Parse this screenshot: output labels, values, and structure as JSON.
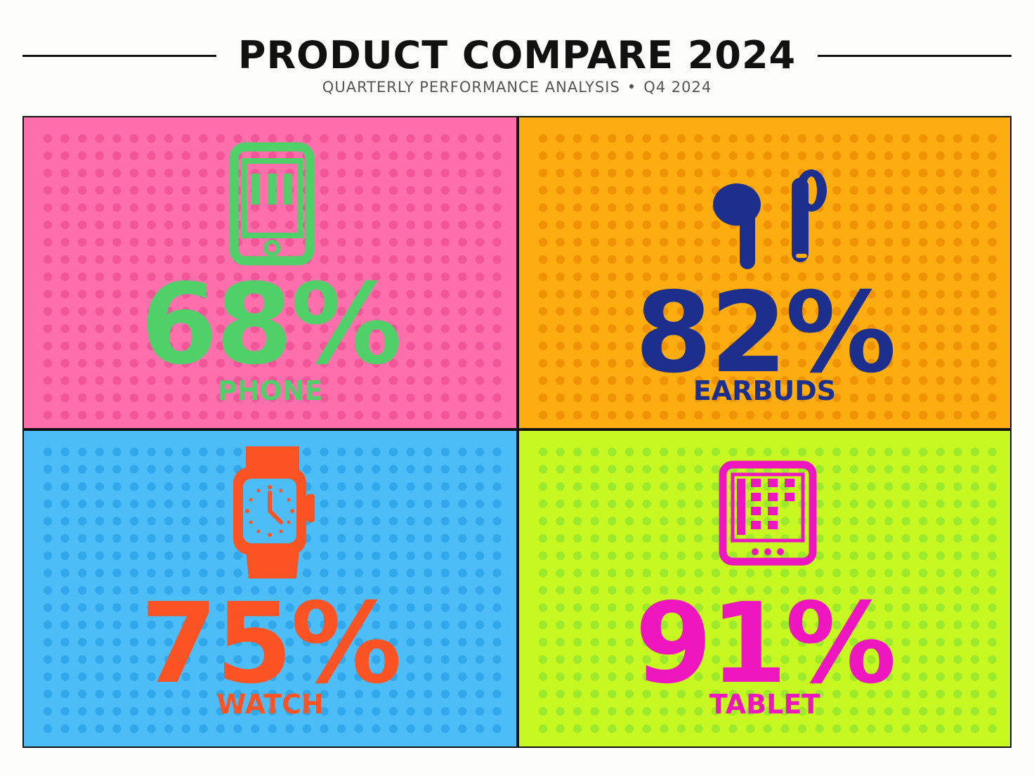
{
  "header": {
    "title": "PRODUCT COMPARE 2024",
    "subtitle_left": "QUARTERLY PERFORMANCE ANALYSIS",
    "subtitle_sep": "•",
    "subtitle_right": "Q4 2024"
  },
  "chart_data": {
    "type": "table",
    "unit": "%",
    "categories": [
      "PHONE",
      "EARBUDS",
      "WATCH",
      "TABLET"
    ],
    "values": [
      68,
      82,
      75,
      91
    ]
  },
  "panels": [
    {
      "label": "PHONE",
      "value_text": "68%",
      "icon": "phone-icon",
      "bg": "#fe6fac",
      "dot": "#ee4d93",
      "accent": "#4fd068"
    },
    {
      "label": "EARBUDS",
      "value_text": "82%",
      "icon": "earbuds-icon",
      "bg": "#fdad10",
      "dot": "#ea8900",
      "accent": "#1c2f8c"
    },
    {
      "label": "WATCH",
      "value_text": "75%",
      "icon": "watch-icon",
      "bg": "#4cbdf6",
      "dot": "#2aa1e8",
      "accent": "#fb5324"
    },
    {
      "label": "TABLET",
      "value_text": "91%",
      "icon": "tablet-icon",
      "bg": "#c8f821",
      "dot": "#8fe430",
      "accent": "#ee16bf"
    }
  ]
}
